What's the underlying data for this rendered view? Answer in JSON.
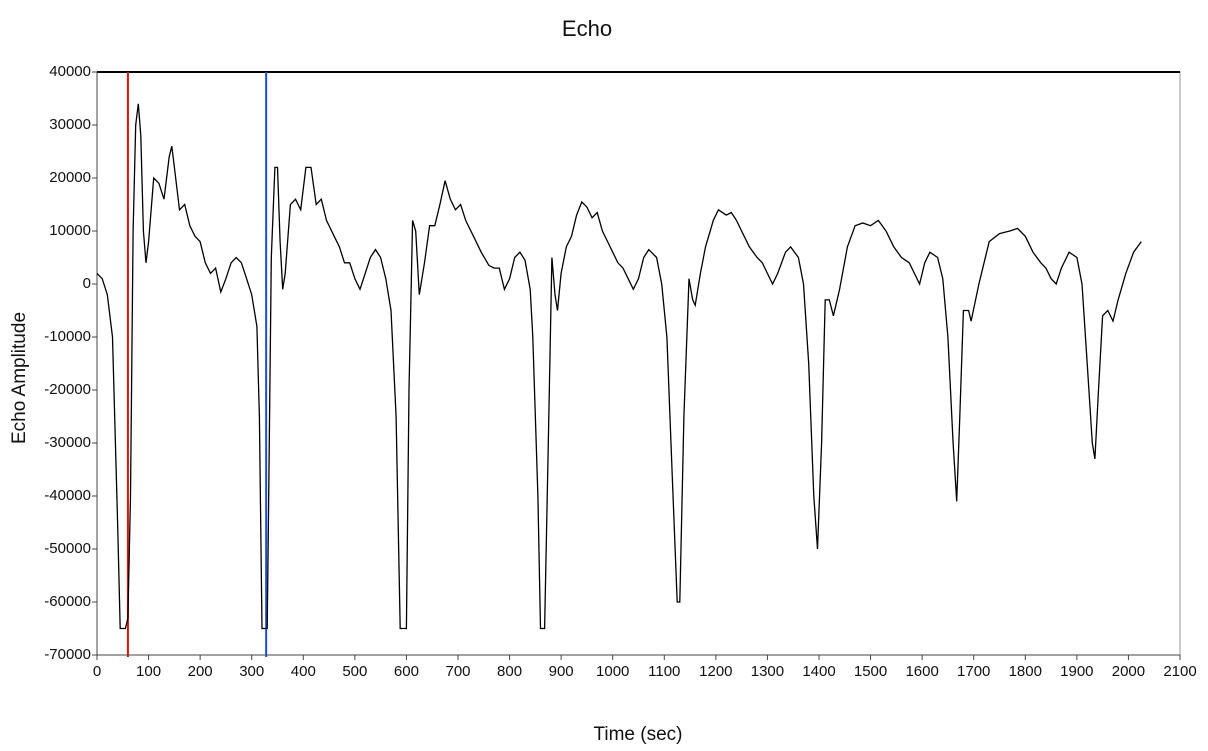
{
  "chart_data": {
    "type": "line",
    "title": "Echo",
    "x_label": "Time (sec)",
    "y_label": "Echo Amplitude",
    "xlim": [
      0,
      2100
    ],
    "xticks": [
      0,
      100,
      200,
      300,
      400,
      500,
      600,
      700,
      800,
      900,
      1000,
      1100,
      1200,
      1300,
      1400,
      1500,
      1600,
      1700,
      1800,
      1900,
      2000,
      2100
    ],
    "ylim": [
      -70000,
      40000
    ],
    "yticks": [
      -70000,
      -60000,
      -50000,
      -40000,
      -30000,
      -20000,
      -10000,
      0,
      10000,
      20000,
      30000,
      40000
    ],
    "grid": false,
    "cursors": [
      {
        "x": 60,
        "color": "#e01010"
      },
      {
        "x": 328,
        "color": "#1a4fd0"
      }
    ],
    "series": [
      {
        "color": "#000000",
        "x": [
          0,
          10,
          20,
          30,
          40,
          45,
          55,
          60,
          65,
          70,
          75,
          80,
          85,
          90,
          95,
          100,
          110,
          120,
          130,
          140,
          145,
          150,
          160,
          170,
          180,
          190,
          200,
          210,
          220,
          230,
          240,
          250,
          260,
          270,
          280,
          290,
          300,
          310,
          315,
          320,
          330,
          333,
          338,
          345,
          350,
          355,
          360,
          365,
          375,
          385,
          395,
          405,
          415,
          425,
          435,
          445,
          460,
          470,
          480,
          490,
          500,
          510,
          520,
          530,
          540,
          550,
          560,
          570,
          580,
          588,
          600,
          605,
          612,
          618,
          625,
          635,
          645,
          655,
          665,
          675,
          685,
          695,
          705,
          715,
          730,
          745,
          760,
          770,
          780,
          790,
          800,
          810,
          820,
          830,
          840,
          845,
          855,
          860,
          868,
          875,
          882,
          888,
          893,
          900,
          910,
          920,
          930,
          940,
          950,
          960,
          970,
          980,
          990,
          1000,
          1010,
          1020,
          1030,
          1040,
          1050,
          1060,
          1070,
          1085,
          1095,
          1105,
          1115,
          1125,
          1130,
          1138,
          1148,
          1155,
          1160,
          1170,
          1180,
          1195,
          1205,
          1220,
          1230,
          1240,
          1250,
          1265,
          1280,
          1290,
          1300,
          1310,
          1320,
          1335,
          1345,
          1360,
          1370,
          1380,
          1390,
          1397,
          1405,
          1412,
          1420,
          1428,
          1440,
          1455,
          1470,
          1485,
          1500,
          1515,
          1530,
          1545,
          1560,
          1575,
          1585,
          1595,
          1605,
          1615,
          1630,
          1640,
          1650,
          1660,
          1667,
          1673,
          1680,
          1690,
          1695,
          1710,
          1730,
          1750,
          1770,
          1785,
          1800,
          1815,
          1830,
          1840,
          1850,
          1860,
          1870,
          1885,
          1900,
          1910,
          1920,
          1930,
          1935,
          1942,
          1950,
          1960,
          1970,
          1980,
          1995,
          2010,
          2025
        ],
        "values": [
          2000,
          1000,
          -2000,
          -10000,
          -45000,
          -65000,
          -65000,
          -63000,
          -40000,
          10000,
          30000,
          34000,
          28000,
          10000,
          4000,
          8000,
          20000,
          19000,
          16000,
          24000,
          26000,
          22000,
          14000,
          15000,
          11000,
          9000,
          8000,
          4000,
          2000,
          3000,
          -1500,
          1000,
          4000,
          5000,
          4000,
          1000,
          -2000,
          -8000,
          -25000,
          -65000,
          -65000,
          -40000,
          5000,
          22000,
          22000,
          8000,
          -1000,
          2000,
          15000,
          16000,
          14000,
          22000,
          22000,
          15000,
          16000,
          12000,
          9000,
          7000,
          4000,
          4000,
          1000,
          -1000,
          2000,
          5000,
          6500,
          5000,
          1000,
          -5000,
          -25000,
          -65000,
          -65000,
          -20000,
          12000,
          10000,
          -2000,
          4000,
          11000,
          11000,
          15000,
          19500,
          16000,
          14000,
          15000,
          12000,
          9000,
          6000,
          3500,
          3000,
          3000,
          -1000,
          1000,
          5000,
          6000,
          4500,
          -1000,
          -10000,
          -40000,
          -65000,
          -65000,
          -30000,
          5000,
          -2000,
          -5000,
          2000,
          7000,
          9000,
          13000,
          15500,
          14500,
          12500,
          13500,
          10000,
          8000,
          6000,
          4000,
          3000,
          1000,
          -1000,
          1000,
          5000,
          6500,
          5000,
          0,
          -10000,
          -35000,
          -60000,
          -60000,
          -25000,
          1000,
          -3000,
          -4000,
          2000,
          7000,
          12000,
          14000,
          13000,
          13500,
          12000,
          10000,
          7000,
          5000,
          4000,
          2000,
          0,
          2000,
          6000,
          7000,
          5000,
          0,
          -15000,
          -40000,
          -50000,
          -30000,
          -3000,
          -3000,
          -6000,
          -1000,
          7000,
          11000,
          11500,
          11000,
          12000,
          10000,
          7000,
          5000,
          4000,
          2000,
          0,
          4000,
          6000,
          5000,
          1000,
          -10000,
          -30000,
          -41000,
          -25000,
          -5000,
          -5000,
          -7000,
          0,
          8000,
          9500,
          10000,
          10500,
          9000,
          6000,
          4000,
          3000,
          1000,
          0,
          3000,
          6000,
          5000,
          0,
          -15000,
          -30000,
          -33000,
          -20000,
          -6000,
          -5000,
          -7000,
          -3000,
          2000,
          6000,
          8000
        ]
      }
    ]
  }
}
